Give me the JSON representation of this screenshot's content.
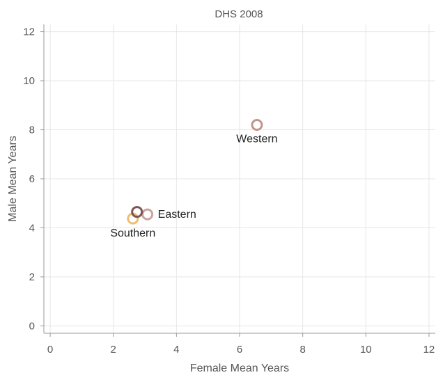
{
  "chart_data": {
    "type": "scatter",
    "title": "DHS 2008",
    "xlabel": "Female Mean Years",
    "ylabel": "Male Mean Years",
    "xlim": [
      -0.2,
      12.2
    ],
    "ylim": [
      -0.3,
      12.3
    ],
    "xticks": [
      0,
      2,
      4,
      6,
      8,
      10,
      12
    ],
    "yticks": [
      0,
      2,
      4,
      6,
      8,
      10,
      12
    ],
    "grid": true,
    "points": [
      {
        "x": 6.55,
        "y": 8.2,
        "label": "Western",
        "color": "#c4948c"
      },
      {
        "x": 2.62,
        "y": 4.38,
        "label": "Southern",
        "color": "#f2bc72"
      },
      {
        "x": 3.08,
        "y": 4.55,
        "label": "Eastern",
        "color": "#cca49e"
      },
      {
        "x": 2.75,
        "y": 4.65,
        "label": "",
        "color": "#7e5552"
      }
    ]
  }
}
